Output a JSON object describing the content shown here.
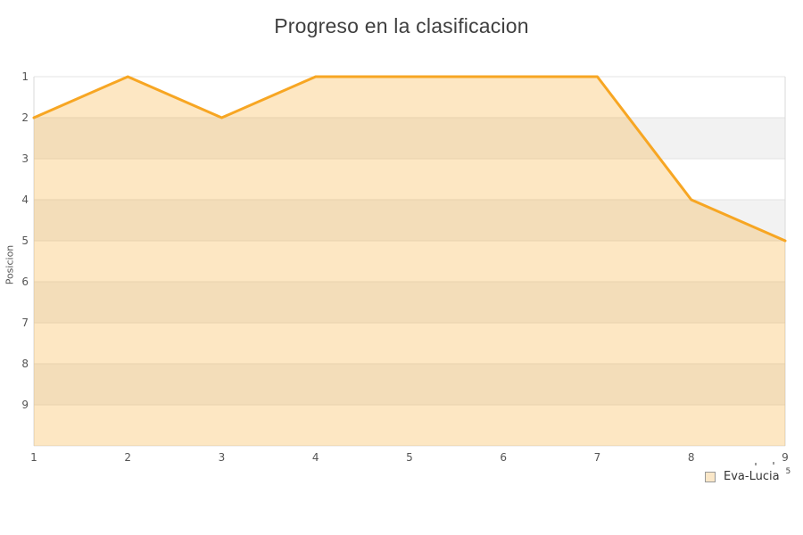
{
  "title": "Progreso en la clasificacion",
  "legend": {
    "label": "Eva-Lucia",
    "superscript": "5",
    "swatch_fill": "#FAE7C8",
    "swatch_border": "#999999"
  },
  "chart_data": {
    "type": "area",
    "title": "Progreso en la clasificacion",
    "xlabel": "",
    "ylabel": "Posicion",
    "x": [
      1,
      2,
      3,
      4,
      5,
      6,
      7,
      8,
      9
    ],
    "series": [
      {
        "name": "Eva-Lucia",
        "values": [
          2,
          1,
          2,
          1,
          1,
          1,
          1,
          4,
          5
        ]
      }
    ],
    "xticks": [
      1,
      2,
      3,
      4,
      5,
      6,
      7,
      8,
      9
    ],
    "yticks": [
      1,
      2,
      3,
      4,
      5,
      6,
      7,
      8,
      9
    ],
    "ylim": [
      1,
      10
    ],
    "y_inverted": true,
    "grid": true,
    "striped_rows": true,
    "legend_position": "bottom-right",
    "colors": {
      "line": "#F7A623",
      "area_fill": "rgba(247,166,35,0.27)",
      "stripe_alt": "#F2F2F2",
      "stripe_main": "#FFFFFF",
      "gridline": "#E3E3E3",
      "plot_border": "#D9D9D9",
      "axis_text": "#555555",
      "title_text": "#3F3F3F"
    }
  }
}
